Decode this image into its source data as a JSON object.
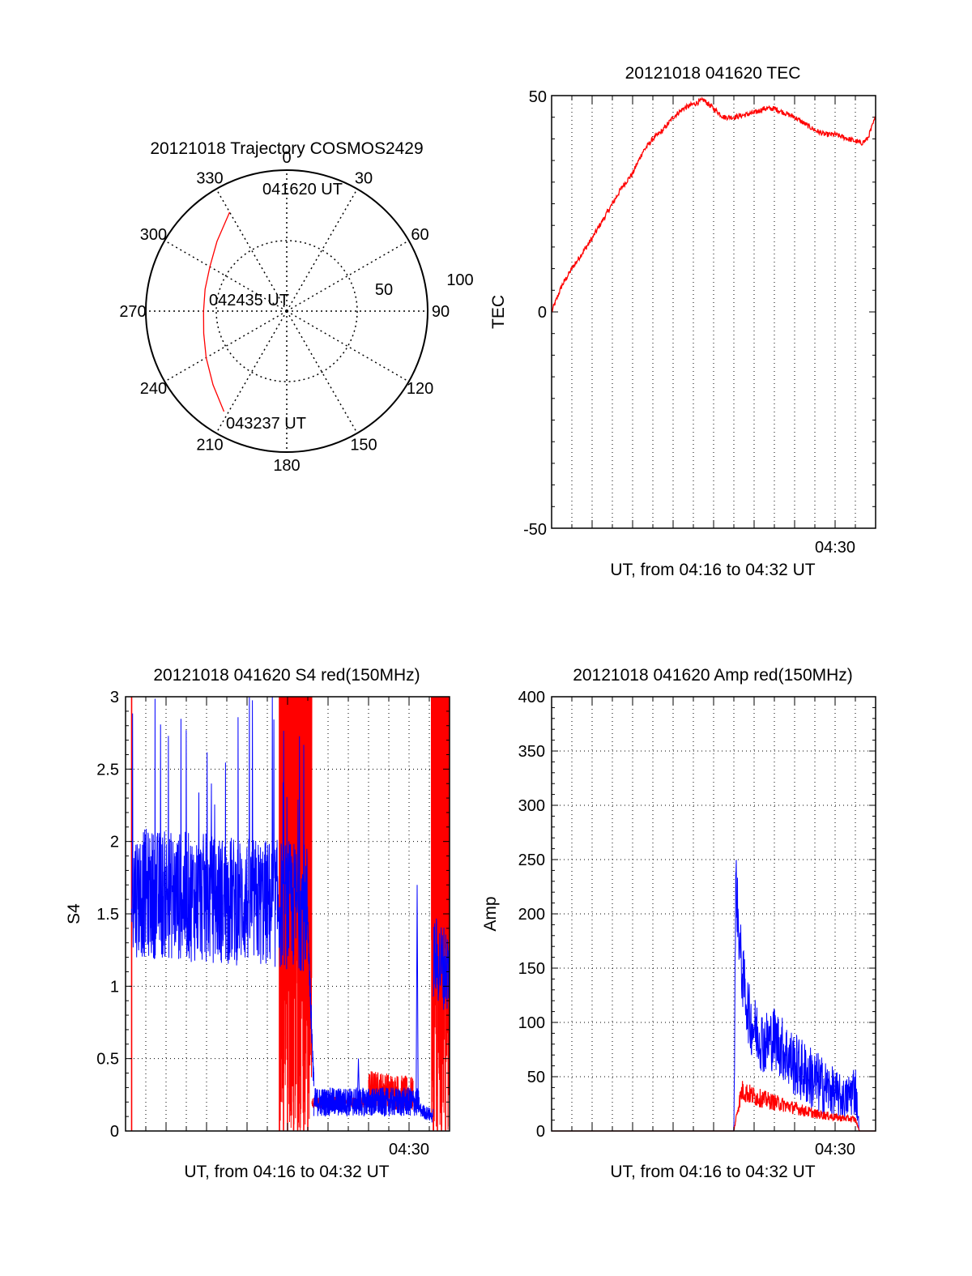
{
  "colors": {
    "red": "#ff0000",
    "blue": "#0000ff",
    "axis": "#000000",
    "grid": "#000000"
  },
  "polar": {
    "title": "20121018 Trajectory COSMOS2429",
    "azimuth_labels": [
      "0",
      "30",
      "60",
      "90",
      "120",
      "150",
      "180",
      "210",
      "240",
      "270",
      "300",
      "330"
    ],
    "radial_labels": [
      "50",
      "100"
    ],
    "time_labels": {
      "start": "041620 UT",
      "middle": "042435 UT",
      "end": "043237 UT"
    },
    "chart_data": {
      "type": "polar",
      "series": [
        {
          "color": "#ff0000",
          "points": [
            [
              330,
              81
            ],
            [
              315,
              70
            ],
            [
              300,
              63
            ],
            [
              285,
              60
            ],
            [
              270,
              59
            ],
            [
              255,
              61
            ],
            [
              240,
              66
            ],
            [
              225,
              74
            ],
            [
              212,
              84
            ]
          ]
        }
      ]
    }
  },
  "tec": {
    "title": "20121018 041620 TEC",
    "ylabel": "TEC",
    "xlabel": "UT, from 04:16 to 04:32 UT",
    "xtick_label": "04:30",
    "ytick_labels": [
      "50",
      "0",
      "-50"
    ],
    "chart_data": {
      "type": "line",
      "xlim": [
        0,
        16
      ],
      "ylim": [
        -50,
        50
      ],
      "xtick_major": 14,
      "xtick_minor_step": 1,
      "grid": "vertical dotted",
      "series": [
        {
          "color": "#ff0000",
          "noise": 0.6,
          "x": [
            0,
            0.5,
            1,
            2,
            2.5,
            3,
            3.5,
            4,
            4.5,
            5,
            5.5,
            6,
            6.5,
            7,
            7.5,
            8,
            8.5,
            9,
            10,
            10.5,
            11,
            11.5,
            12,
            13,
            13.5,
            14,
            15.3,
            15.6,
            16
          ],
          "y": [
            0,
            6,
            10,
            17,
            21,
            25,
            29,
            32,
            37,
            40,
            42,
            45,
            47,
            48,
            49,
            47,
            45,
            45,
            46,
            47,
            47,
            46,
            45,
            42,
            41,
            41,
            39,
            40,
            45
          ]
        }
      ]
    }
  },
  "s4": {
    "title": "20121018 041620 S4 red(150MHz)",
    "ylabel": "S4",
    "xlabel": "UT, from 04:16 to 04:32 UT",
    "xtick_label": "04:30",
    "ytick_labels": [
      "3",
      "2.5",
      "2",
      "1.5",
      "1",
      "0.5",
      "0"
    ],
    "chart_data": {
      "type": "line",
      "xlim": [
        0,
        16
      ],
      "ylim": [
        0,
        3
      ],
      "xtick_major": 14,
      "grid": "dotted",
      "series": [
        {
          "name": "",
          "color": "#ff0000",
          "segments": [
            {
              "x": [
                7.6,
                9.2
              ],
              "y": [
                3,
                3
              ],
              "noise": 1.6,
              "spikes": true
            },
            {
              "x": [
                9.2,
                12.0
              ],
              "y": [
                0.18,
                0.18
              ],
              "noise": 0.08
            },
            {
              "x": [
                12.0,
                14.2
              ],
              "y": [
                0.25,
                0.2
              ],
              "noise": 0.25
            },
            {
              "x": [
                15.1,
                16
              ],
              "y": [
                3,
                3
              ],
              "noise": 1.6,
              "spikes": true
            }
          ],
          "vertical_lines": [
            0.3,
            7.6,
            7.8,
            8.0,
            8.3,
            8.5,
            8.8,
            9.0,
            15.2,
            15.4,
            15.6,
            15.8
          ]
        },
        {
          "name": "",
          "color": "#0000ff",
          "segments": [
            {
              "x": [
                0.3,
                9.0
              ],
              "y": [
                1.65,
                1.55
              ],
              "noise": 0.45
            },
            {
              "x": [
                9.0,
                9.3
              ],
              "y": [
                1.4,
                0.3
              ],
              "noise": 0.1
            },
            {
              "x": [
                9.3,
                14.5
              ],
              "y": [
                0.2,
                0.2
              ],
              "noise": 0.1
            },
            {
              "x": [
                14.5,
                15.2
              ],
              "y": [
                0.15,
                0.1
              ],
              "noise": 0.05
            },
            {
              "x": [
                15.2,
                16
              ],
              "y": [
                1.2,
                1.1
              ],
              "noise": 0.3
            }
          ],
          "peaks": [
            [
              14.4,
              1.7
            ],
            [
              11.5,
              0.5
            ]
          ]
        }
      ]
    }
  },
  "amp": {
    "title": "20121018 041620 Amp red(150MHz)",
    "ylabel": "Amp",
    "xlabel": "UT, from 04:16 to 04:32 UT",
    "xtick_label": "04:30",
    "ytick_labels": [
      "400",
      "350",
      "300",
      "250",
      "200",
      "150",
      "100",
      "50",
      "0"
    ],
    "chart_data": {
      "type": "line",
      "xlim": [
        0,
        16
      ],
      "ylim": [
        0,
        400
      ],
      "xtick_major": 14,
      "grid": "dotted",
      "series": [
        {
          "name": "",
          "color": "#ff0000",
          "x": [
            0,
            9.0,
            9.2,
            9.4,
            10,
            11,
            12,
            13,
            14,
            15,
            15.2,
            16
          ],
          "y": [
            0,
            0,
            20,
            35,
            30,
            25,
            20,
            15,
            12,
            10,
            0,
            0
          ],
          "noise": 12
        },
        {
          "name": "",
          "color": "#0000ff",
          "x": [
            0,
            9.0,
            9.1,
            9.2,
            9.4,
            9.8,
            10.5,
            11,
            12,
            13,
            14,
            14.5,
            15,
            15.2,
            16
          ],
          "y": [
            0,
            0,
            230,
            190,
            140,
            95,
            75,
            80,
            55,
            40,
            30,
            25,
            35,
            0,
            0
          ],
          "noise": 30
        }
      ]
    }
  }
}
